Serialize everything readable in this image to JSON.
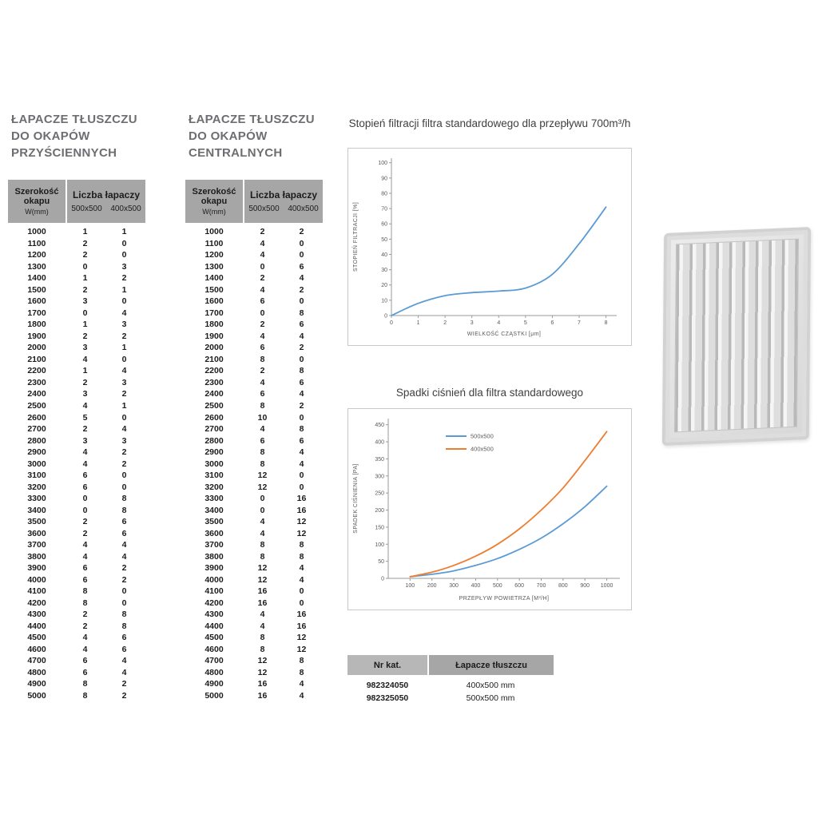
{
  "titles": {
    "wall": "ŁAPACZE TŁUSZCZU\nDO OKAPÓW\nPRZYŚCIENNYCH",
    "central": "ŁAPACZE TŁUSZCZU\nDO OKAPÓW\nCENTRALNYCH"
  },
  "spec_tables": {
    "wall": {
      "width_header": "Szerokość\nokapu",
      "width_unit": "W(mm)",
      "group_header": "Liczba łapaczy",
      "sub_headers": [
        "500x500",
        "400x500"
      ],
      "rows": [
        [
          1000,
          1,
          1
        ],
        [
          1100,
          2,
          0
        ],
        [
          1200,
          2,
          0
        ],
        [
          1300,
          0,
          3
        ],
        [
          1400,
          1,
          2
        ],
        [
          1500,
          2,
          1
        ],
        [
          1600,
          3,
          0
        ],
        [
          1700,
          0,
          4
        ],
        [
          1800,
          1,
          3
        ],
        [
          1900,
          2,
          2
        ],
        [
          2000,
          3,
          1
        ],
        [
          2100,
          4,
          0
        ],
        [
          2200,
          1,
          4
        ],
        [
          2300,
          2,
          3
        ],
        [
          2400,
          3,
          2
        ],
        [
          2500,
          4,
          1
        ],
        [
          2600,
          5,
          0
        ],
        [
          2700,
          2,
          4
        ],
        [
          2800,
          3,
          3
        ],
        [
          2900,
          4,
          2
        ],
        [
          3000,
          4,
          2
        ],
        [
          3100,
          6,
          0
        ],
        [
          3200,
          6,
          0
        ],
        [
          3300,
          0,
          8
        ],
        [
          3400,
          0,
          8
        ],
        [
          3500,
          2,
          6
        ],
        [
          3600,
          2,
          6
        ],
        [
          3700,
          4,
          4
        ],
        [
          3800,
          4,
          4
        ],
        [
          3900,
          6,
          2
        ],
        [
          4000,
          6,
          2
        ],
        [
          4100,
          8,
          0
        ],
        [
          4200,
          8,
          0
        ],
        [
          4300,
          2,
          8
        ],
        [
          4400,
          2,
          8
        ],
        [
          4500,
          4,
          6
        ],
        [
          4600,
          4,
          6
        ],
        [
          4700,
          6,
          4
        ],
        [
          4800,
          6,
          4
        ],
        [
          4900,
          8,
          2
        ],
        [
          5000,
          8,
          2
        ]
      ]
    },
    "central": {
      "width_header": "Szerokość\nokapu",
      "width_unit": "W(mm)",
      "group_header": "Liczba łapaczy",
      "sub_headers": [
        "500x500",
        "400x500"
      ],
      "rows": [
        [
          1000,
          2,
          2
        ],
        [
          1100,
          4,
          0
        ],
        [
          1200,
          4,
          0
        ],
        [
          1300,
          0,
          6
        ],
        [
          1400,
          2,
          4
        ],
        [
          1500,
          4,
          2
        ],
        [
          1600,
          6,
          0
        ],
        [
          1700,
          0,
          8
        ],
        [
          1800,
          2,
          6
        ],
        [
          1900,
          4,
          4
        ],
        [
          2000,
          6,
          2
        ],
        [
          2100,
          8,
          0
        ],
        [
          2200,
          2,
          8
        ],
        [
          2300,
          4,
          6
        ],
        [
          2400,
          6,
          4
        ],
        [
          2500,
          8,
          2
        ],
        [
          2600,
          10,
          0
        ],
        [
          2700,
          4,
          8
        ],
        [
          2800,
          6,
          6
        ],
        [
          2900,
          8,
          4
        ],
        [
          3000,
          8,
          4
        ],
        [
          3100,
          12,
          0
        ],
        [
          3200,
          12,
          0
        ],
        [
          3300,
          0,
          16
        ],
        [
          3400,
          0,
          16
        ],
        [
          3500,
          4,
          12
        ],
        [
          3600,
          4,
          12
        ],
        [
          3700,
          8,
          8
        ],
        [
          3800,
          8,
          8
        ],
        [
          3900,
          12,
          4
        ],
        [
          4000,
          12,
          4
        ],
        [
          4100,
          16,
          0
        ],
        [
          4200,
          16,
          0
        ],
        [
          4300,
          4,
          16
        ],
        [
          4400,
          4,
          16
        ],
        [
          4500,
          8,
          12
        ],
        [
          4600,
          8,
          12
        ],
        [
          4700,
          12,
          8
        ],
        [
          4800,
          12,
          8
        ],
        [
          4900,
          16,
          4
        ],
        [
          5000,
          16,
          4
        ]
      ]
    }
  },
  "chart_data": [
    {
      "type": "line",
      "title": "Stopień filtracji filtra standardowego dla przepływu 700m³/h",
      "xlabel": "WIELKOŚĆ CZĄSTKI [μm]",
      "ylabel": "STOPIEŃ FILTRACJI [%]",
      "xlim": [
        0,
        8.4
      ],
      "ylim": [
        0,
        103
      ],
      "xticks": [
        0,
        1,
        2,
        3,
        4,
        5,
        6,
        7,
        8
      ],
      "yticks": [
        0,
        10,
        20,
        30,
        40,
        50,
        60,
        70,
        80,
        90,
        100
      ],
      "grid": false,
      "legend": false,
      "series": [
        {
          "name": "stopień filtracji",
          "color": "#5b9bd5",
          "x": [
            0,
            1,
            2,
            3,
            4,
            5,
            6,
            7,
            8
          ],
          "y": [
            0,
            8,
            13,
            15,
            16,
            18,
            27,
            47,
            71
          ]
        }
      ]
    },
    {
      "type": "line",
      "title": "Spadki ciśnień dla filtra standardowego",
      "xlabel": "PRZEPŁYW POWIETRZA [M³/H]",
      "ylabel": "SPADEK CIŚNIENIA [PA]",
      "xlim": [
        0,
        1060
      ],
      "ylim": [
        0,
        468
      ],
      "xticks": [
        100,
        200,
        300,
        400,
        500,
        600,
        700,
        800,
        900,
        1000
      ],
      "yticks": [
        0,
        50,
        100,
        150,
        200,
        250,
        300,
        350,
        400,
        450
      ],
      "grid": false,
      "legend": true,
      "legend_position": "top-center",
      "series": [
        {
          "name": "500x500",
          "color": "#5b9bd5",
          "x": [
            100,
            200,
            300,
            400,
            500,
            600,
            700,
            800,
            900,
            1000
          ],
          "y": [
            5,
            12,
            22,
            38,
            58,
            85,
            118,
            160,
            210,
            270
          ]
        },
        {
          "name": "400x500",
          "color": "#ed7d31",
          "x": [
            100,
            200,
            300,
            400,
            500,
            600,
            700,
            800,
            900,
            1000
          ],
          "y": [
            5,
            18,
            38,
            65,
            100,
            145,
            200,
            265,
            345,
            430
          ]
        }
      ]
    }
  ],
  "catalog": {
    "headers": [
      "Nr kat.",
      "Łapacze tłuszczu"
    ],
    "rows": [
      [
        "982324050",
        "400x500 mm"
      ],
      [
        "982325050",
        "500x500 mm"
      ]
    ]
  },
  "product_image": {
    "alt": "grease-filter-baffle-grille"
  },
  "colors": {
    "blue": "#5b9bd5",
    "orange": "#ed7d31",
    "header_gray": "#a6a6a6"
  }
}
